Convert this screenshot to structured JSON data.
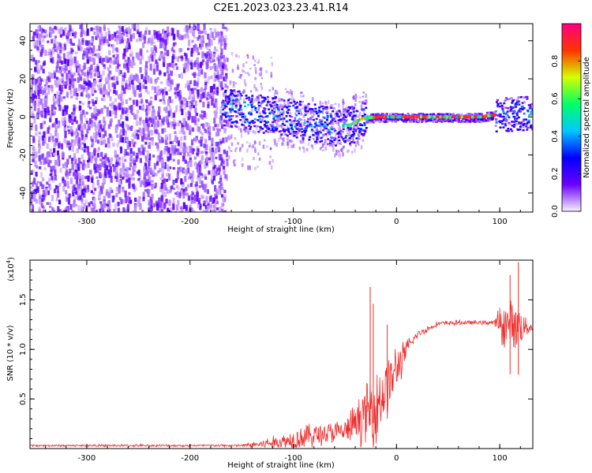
{
  "title": "C2E1.2023.023.23.41.R14",
  "chart_data": [
    {
      "type": "heatmap",
      "xlabel": "Height of straight line (km)",
      "ylabel": "Frequency (Hz)",
      "xlim": [
        -355,
        132
      ],
      "ylim": [
        -50,
        49
      ],
      "xticks": [
        -300,
        -200,
        -100,
        0,
        100
      ],
      "yticks": [
        -40,
        -20,
        0,
        20,
        40
      ],
      "colorbar": {
        "label": "Normalized spectral amplitude",
        "range": [
          0.0,
          1.0
        ],
        "ticks": [
          "0.0",
          "0.2",
          "0.4",
          "0.6",
          "0.8"
        ],
        "tick_values": [
          0.0,
          0.2,
          0.4,
          0.6,
          0.8
        ],
        "colormap": [
          "#f7f0ff",
          "#6a00ff",
          "#0000ff",
          "#00c8ff",
          "#00ff66",
          "#d4ff00",
          "#ff3300",
          "#ff0080"
        ]
      },
      "ridge": {
        "x": [
          -170,
          -150,
          -130,
          -110,
          -90,
          -70,
          -55,
          -45,
          -35,
          -20,
          0,
          40,
          80,
          95,
          110,
          125,
          132
        ],
        "freq": [
          6,
          4,
          2,
          1,
          -2,
          -4,
          -5,
          -4,
          -1,
          0,
          0,
          0,
          0,
          1,
          2,
          2,
          1
        ]
      },
      "noise_region": [
        -355,
        -165
      ],
      "sparse_region": [
        -165,
        -30
      ],
      "strong_region": [
        -30,
        95
      ],
      "burst_region": [
        95,
        132
      ]
    },
    {
      "type": "line",
      "xlabel": "Height of straight line (km)",
      "ylabel": "SNR (10 * v/v)",
      "yscale_label": "(x10",
      "yscale_exp": "4",
      "yscale_close": ")",
      "xlim": [
        -355,
        132
      ],
      "ylim": [
        0,
        19000
      ],
      "xticks": [
        -300,
        -200,
        -100,
        0,
        100
      ],
      "yticks": [
        "0.5",
        "1.0",
        "1.5"
      ],
      "ytick_values": [
        5000,
        10000,
        15000
      ],
      "color": "#ee2b2b",
      "envelope": {
        "x": [
          -355,
          -150,
          -130,
          -110,
          -90,
          -70,
          -50,
          -40,
          -30,
          -20,
          -10,
          0,
          10,
          20,
          40,
          60,
          80,
          95,
          100,
          110,
          120,
          132
        ],
        "base": [
          300,
          300,
          450,
          700,
          1200,
          1500,
          1700,
          2500,
          3500,
          4500,
          6000,
          8000,
          10000,
          11500,
          12600,
          12700,
          12700,
          12700,
          12500,
          12500,
          12400,
          12200
        ],
        "amp": [
          120,
          150,
          600,
          1000,
          1600,
          1400,
          1500,
          2500,
          3500,
          5000,
          4000,
          3000,
          1200,
          500,
          300,
          300,
          250,
          300,
          2500,
          2800,
          2500,
          200
        ]
      },
      "spikes": [
        {
          "x": -25.5,
          "y": 16300
        },
        {
          "x": -22.5,
          "y": 14600
        },
        {
          "x": -9,
          "y": 12500
        },
        {
          "x": 118,
          "y": 18800
        },
        {
          "x": 110,
          "y": 17500
        }
      ]
    }
  ]
}
